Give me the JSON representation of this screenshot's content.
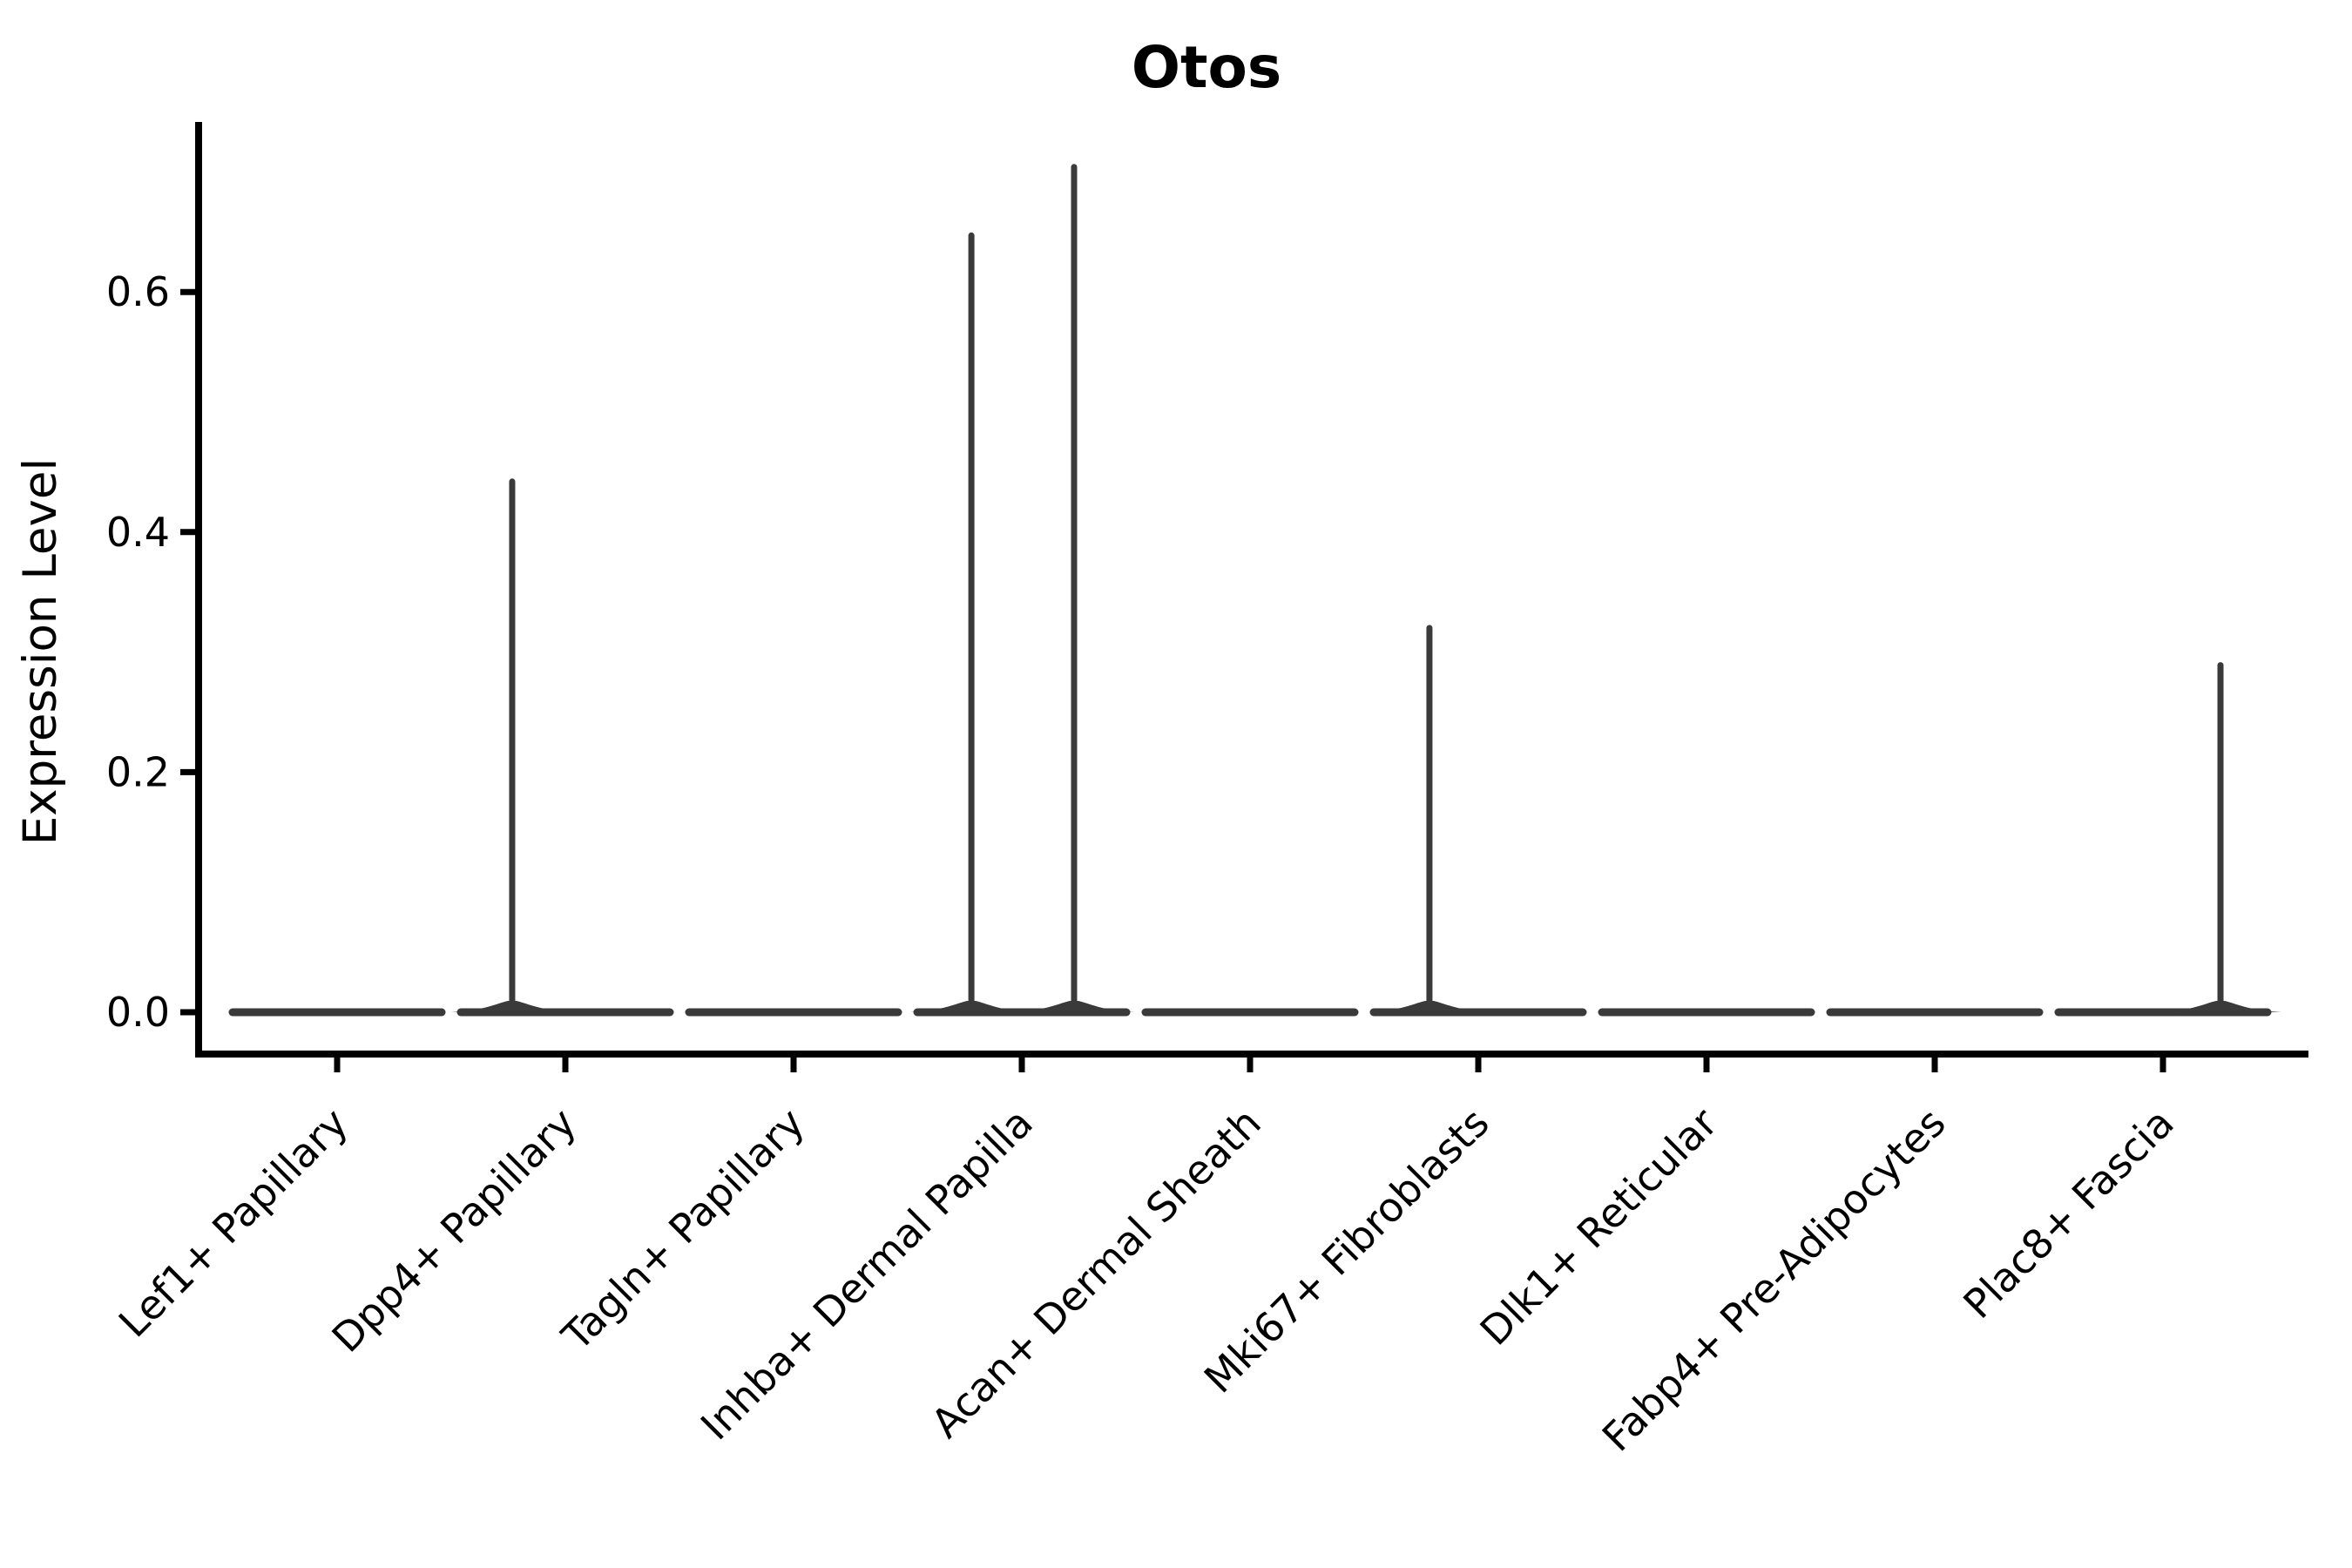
{
  "figure": {
    "background": "#ffffff"
  },
  "chart_data": {
    "type": "violin",
    "title": "Otos",
    "xlabel": "",
    "ylabel": "Expression Level",
    "grid": false,
    "legend": null,
    "ylim": [
      -0.034,
      0.742
    ],
    "yticks": [
      {
        "label": "0.0",
        "value": 0.0
      },
      {
        "label": "0.2",
        "value": 0.2
      },
      {
        "label": "0.4",
        "value": 0.4
      },
      {
        "label": "0.6",
        "value": 0.6
      }
    ],
    "categories": [
      "Lef1+ Papillary",
      "Dpp4+ Papillary",
      "Tagln+ Papillary",
      "Inhba+ Dermal Papilla",
      "Acan+ Dermal Sheath",
      "Mki67+ Fibroblasts",
      "Dlk1+ Reticular",
      "Fabp4+ Pre-Adipocytes",
      "Plac8+ Fascia"
    ],
    "violins": [
      {
        "category": "Lef1+ Papillary",
        "baseline_value": 0.0,
        "spikes": []
      },
      {
        "category": "Dpp4+ Papillary",
        "baseline_value": 0.0,
        "spikes": [
          {
            "value": 0.445,
            "offset": -0.233
          }
        ]
      },
      {
        "category": "Tagln+ Papillary",
        "baseline_value": 0.0,
        "spikes": []
      },
      {
        "category": "Inhba+ Dermal Papilla",
        "baseline_value": 0.0,
        "spikes": [
          {
            "value": 0.65,
            "offset": -0.221
          },
          {
            "value": 0.707,
            "offset": 0.229
          }
        ]
      },
      {
        "category": "Acan+ Dermal Sheath",
        "baseline_value": 0.0,
        "spikes": []
      },
      {
        "category": "Mki67+ Fibroblasts",
        "baseline_value": 0.0,
        "spikes": [
          {
            "value": 0.323,
            "offset": -0.214
          }
        ]
      },
      {
        "category": "Dlk1+ Reticular",
        "baseline_value": 0.0,
        "spikes": []
      },
      {
        "category": "Fabp4+ Pre-Adipocytes",
        "baseline_value": 0.0,
        "spikes": []
      },
      {
        "category": "Plac8+ Fascia",
        "baseline_value": 0.0,
        "spikes": [
          {
            "value": 0.292,
            "offset": 0.252
          }
        ]
      }
    ],
    "colors": {
      "violin": "#3a3a3a",
      "axis": "#000000",
      "text": "#000000",
      "background": "#ffffff"
    }
  }
}
